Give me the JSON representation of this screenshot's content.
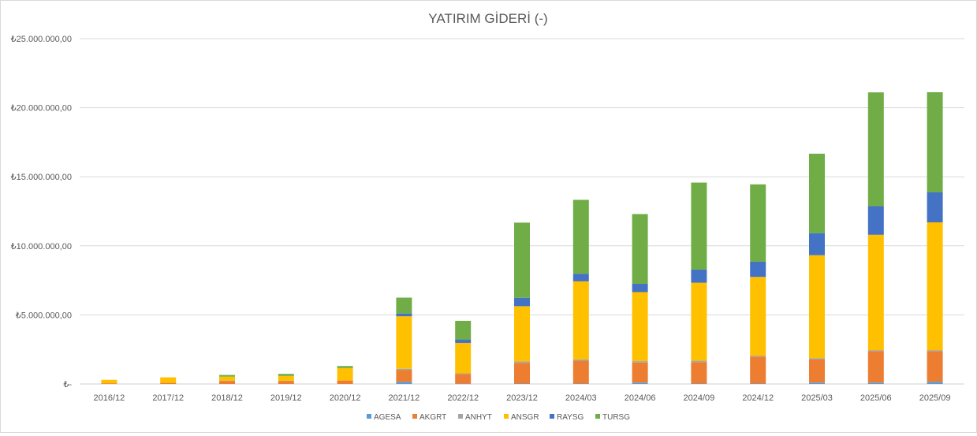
{
  "chart_data": {
    "type": "bar",
    "stacked": true,
    "title": "YATIRIM GİDERİ (-)",
    "xlabel": "",
    "ylabel": "",
    "ylim": [
      0,
      25000000
    ],
    "yticks": [
      0,
      5000000,
      10000000,
      15000000,
      20000000,
      25000000
    ],
    "ytick_labels": [
      "₺-",
      "₺5.000.000,00",
      "₺10.000.000,00",
      "₺15.000.000,00",
      "₺20.000.000,00",
      "₺25.000.000,00"
    ],
    "grid": true,
    "legend_position": "bottom",
    "categories": [
      "2016/12",
      "2017/12",
      "2018/12",
      "2019/12",
      "2020/12",
      "2021/12",
      "2022/12",
      "2023/12",
      "2024/03",
      "2024/06",
      "2024/09",
      "2024/12",
      "2025/03",
      "2025/06",
      "2025/09"
    ],
    "series": [
      {
        "name": "AGESA",
        "color": "#5B9BD5",
        "values": [
          0,
          0,
          0,
          0,
          0,
          150000,
          20000,
          30000,
          30000,
          100000,
          30000,
          30000,
          100000,
          100000,
          150000
        ]
      },
      {
        "name": "AKGRT",
        "color": "#ED7D31",
        "values": [
          50000,
          80000,
          200000,
          200000,
          250000,
          850000,
          700000,
          1500000,
          1650000,
          1450000,
          1550000,
          1950000,
          1670000,
          2280000,
          2230000
        ]
      },
      {
        "name": "ANHYT",
        "color": "#A5A5A5",
        "values": [
          0,
          0,
          30000,
          30000,
          0,
          100000,
          50000,
          100000,
          100000,
          100000,
          100000,
          70000,
          100000,
          70000,
          70000
        ]
      },
      {
        "name": "ANSGR",
        "color": "#FFC000",
        "values": [
          250000,
          400000,
          300000,
          350000,
          900000,
          3800000,
          2200000,
          4000000,
          5650000,
          5000000,
          5650000,
          5700000,
          7450000,
          8350000,
          9250000
        ]
      },
      {
        "name": "RAYSG",
        "color": "#4472C4",
        "values": [
          0,
          0,
          0,
          0,
          0,
          200000,
          250000,
          600000,
          550000,
          600000,
          950000,
          1100000,
          1600000,
          2070000,
          2170000
        ]
      },
      {
        "name": "TURSG",
        "color": "#70AD47",
        "values": [
          0,
          0,
          120000,
          150000,
          150000,
          1150000,
          1350000,
          5450000,
          5350000,
          5050000,
          6300000,
          5600000,
          5750000,
          8240000,
          7250000
        ]
      }
    ]
  }
}
